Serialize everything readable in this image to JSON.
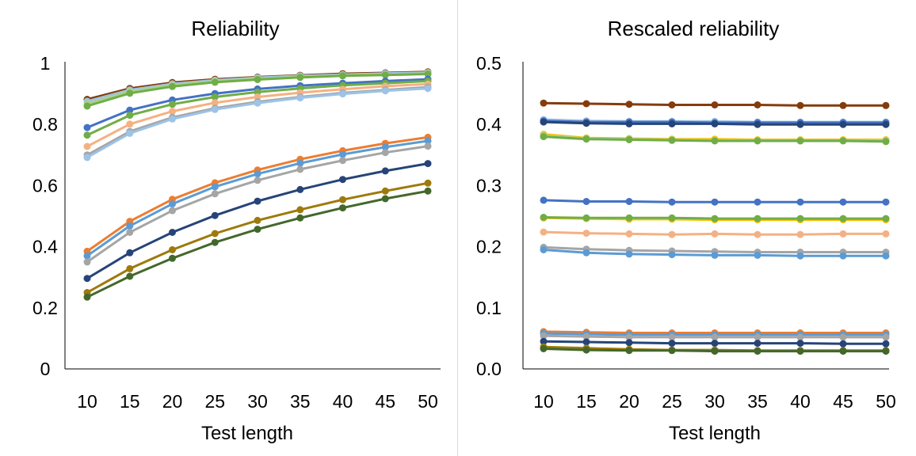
{
  "chart_data": [
    {
      "type": "line",
      "title": "Reliability",
      "xlabel": "Test length",
      "ylabel": "",
      "x": [
        10,
        15,
        20,
        25,
        30,
        35,
        40,
        45,
        50
      ],
      "y_ticks": [
        "0",
        "0.2",
        "0.4",
        "0.6",
        "0.8",
        "1"
      ],
      "ylim": [
        0,
        1
      ],
      "grid": false,
      "legend": "none",
      "series": [
        {
          "color": "#843c0c",
          "values": [
            0.882,
            0.918,
            0.937,
            0.948,
            0.955,
            0.961,
            0.966,
            0.969,
            0.972
          ]
        },
        {
          "color": "#9dc3e6",
          "values": [
            0.876,
            0.913,
            0.933,
            0.945,
            0.953,
            0.959,
            0.963,
            0.967,
            0.97
          ]
        },
        {
          "color": "#a9d18e",
          "values": [
            0.868,
            0.908,
            0.929,
            0.942,
            0.95,
            0.956,
            0.961,
            0.964,
            0.967
          ]
        },
        {
          "color": "#70ad47",
          "values": [
            0.86,
            0.902,
            0.924,
            0.938,
            0.947,
            0.954,
            0.959,
            0.962,
            0.965
          ]
        },
        {
          "color": "#4472c4",
          "values": [
            0.79,
            0.847,
            0.88,
            0.901,
            0.916,
            0.927,
            0.935,
            0.942,
            0.948
          ]
        },
        {
          "color": "#70ad47",
          "values": [
            0.765,
            0.83,
            0.866,
            0.89,
            0.906,
            0.918,
            0.928,
            0.935,
            0.942
          ]
        },
        {
          "color": "#f4b183",
          "values": [
            0.728,
            0.801,
            0.843,
            0.871,
            0.89,
            0.904,
            0.915,
            0.925,
            0.932
          ]
        },
        {
          "color": "#a5a5a5",
          "values": [
            0.7,
            0.777,
            0.823,
            0.853,
            0.874,
            0.89,
            0.903,
            0.913,
            0.922
          ]
        },
        {
          "color": "#9dc3e6",
          "values": [
            0.692,
            0.771,
            0.818,
            0.849,
            0.87,
            0.887,
            0.9,
            0.91,
            0.918
          ]
        },
        {
          "color": "#ed7d31",
          "values": [
            0.385,
            0.483,
            0.555,
            0.609,
            0.651,
            0.686,
            0.714,
            0.738,
            0.758
          ]
        },
        {
          "color": "#5b9bd5",
          "values": [
            0.37,
            0.468,
            0.54,
            0.596,
            0.638,
            0.673,
            0.702,
            0.726,
            0.746
          ]
        },
        {
          "color": "#a5a5a5",
          "values": [
            0.35,
            0.447,
            0.518,
            0.573,
            0.617,
            0.653,
            0.682,
            0.708,
            0.729
          ]
        },
        {
          "color": "#264478",
          "values": [
            0.296,
            0.38,
            0.447,
            0.502,
            0.549,
            0.587,
            0.62,
            0.648,
            0.672
          ]
        },
        {
          "color": "#9e7a0c",
          "values": [
            0.25,
            0.328,
            0.39,
            0.443,
            0.486,
            0.521,
            0.554,
            0.582,
            0.608
          ]
        },
        {
          "color": "#43682b",
          "values": [
            0.235,
            0.303,
            0.362,
            0.414,
            0.457,
            0.494,
            0.527,
            0.557,
            0.582
          ]
        }
      ]
    },
    {
      "type": "line",
      "title": "Rescaled reliability",
      "xlabel": "Test length",
      "ylabel": "",
      "x": [
        10,
        15,
        20,
        25,
        30,
        35,
        40,
        45,
        50
      ],
      "y_ticks": [
        "0.0",
        "0.1",
        "0.2",
        "0.3",
        "0.4",
        "0.5"
      ],
      "ylim": [
        0,
        0.5
      ],
      "grid": false,
      "legend": "none",
      "series": [
        {
          "color": "#843c0c",
          "values": [
            0.435,
            0.434,
            0.433,
            0.432,
            0.432,
            0.432,
            0.431,
            0.431,
            0.431
          ]
        },
        {
          "color": "#9dc3e6",
          "values": [
            0.408,
            0.406,
            0.405,
            0.405,
            0.405,
            0.404,
            0.404,
            0.404,
            0.404
          ]
        },
        {
          "color": "#4472c4",
          "values": [
            0.406,
            0.404,
            0.404,
            0.404,
            0.403,
            0.403,
            0.403,
            0.403,
            0.403
          ]
        },
        {
          "color": "#264478",
          "values": [
            0.404,
            0.402,
            0.401,
            0.401,
            0.401,
            0.4,
            0.4,
            0.4,
            0.4
          ]
        },
        {
          "color": "#ffc000",
          "values": [
            0.384,
            0.378,
            0.377,
            0.376,
            0.376,
            0.375,
            0.375,
            0.375,
            0.375
          ]
        },
        {
          "color": "#a9d18e",
          "values": [
            0.382,
            0.377,
            0.376,
            0.375,
            0.374,
            0.374,
            0.374,
            0.374,
            0.374
          ]
        },
        {
          "color": "#70ad47",
          "values": [
            0.38,
            0.376,
            0.375,
            0.374,
            0.373,
            0.373,
            0.373,
            0.373,
            0.372
          ]
        },
        {
          "color": "#4472c4",
          "values": [
            0.276,
            0.274,
            0.274,
            0.273,
            0.273,
            0.273,
            0.273,
            0.273,
            0.273
          ]
        },
        {
          "color": "#ffc000",
          "values": [
            0.247,
            0.246,
            0.245,
            0.245,
            0.244,
            0.244,
            0.244,
            0.244,
            0.244
          ]
        },
        {
          "color": "#70ad47",
          "values": [
            0.248,
            0.247,
            0.247,
            0.247,
            0.246,
            0.246,
            0.246,
            0.246,
            0.246
          ]
        },
        {
          "color": "#f4b183",
          "values": [
            0.224,
            0.222,
            0.221,
            0.22,
            0.221,
            0.22,
            0.22,
            0.221,
            0.221
          ]
        },
        {
          "color": "#a5a5a5",
          "values": [
            0.199,
            0.196,
            0.194,
            0.193,
            0.192,
            0.191,
            0.191,
            0.191,
            0.191
          ]
        },
        {
          "color": "#5b9bd5",
          "values": [
            0.195,
            0.19,
            0.188,
            0.187,
            0.186,
            0.186,
            0.185,
            0.185,
            0.185
          ]
        },
        {
          "color": "#ed7d31",
          "values": [
            0.061,
            0.06,
            0.059,
            0.059,
            0.059,
            0.059,
            0.059,
            0.059,
            0.059
          ]
        },
        {
          "color": "#5b9bd5",
          "values": [
            0.058,
            0.057,
            0.056,
            0.056,
            0.056,
            0.056,
            0.056,
            0.056,
            0.056
          ]
        },
        {
          "color": "#a5a5a5",
          "values": [
            0.054,
            0.053,
            0.052,
            0.052,
            0.052,
            0.052,
            0.052,
            0.052,
            0.052
          ]
        },
        {
          "color": "#264478",
          "values": [
            0.045,
            0.044,
            0.043,
            0.042,
            0.042,
            0.042,
            0.042,
            0.041,
            0.041
          ]
        },
        {
          "color": "#9e7a0c",
          "values": [
            0.036,
            0.034,
            0.032,
            0.031,
            0.031,
            0.03,
            0.03,
            0.03,
            0.03
          ]
        },
        {
          "color": "#43682b",
          "values": [
            0.033,
            0.031,
            0.03,
            0.03,
            0.029,
            0.029,
            0.029,
            0.029,
            0.029
          ]
        }
      ]
    }
  ]
}
